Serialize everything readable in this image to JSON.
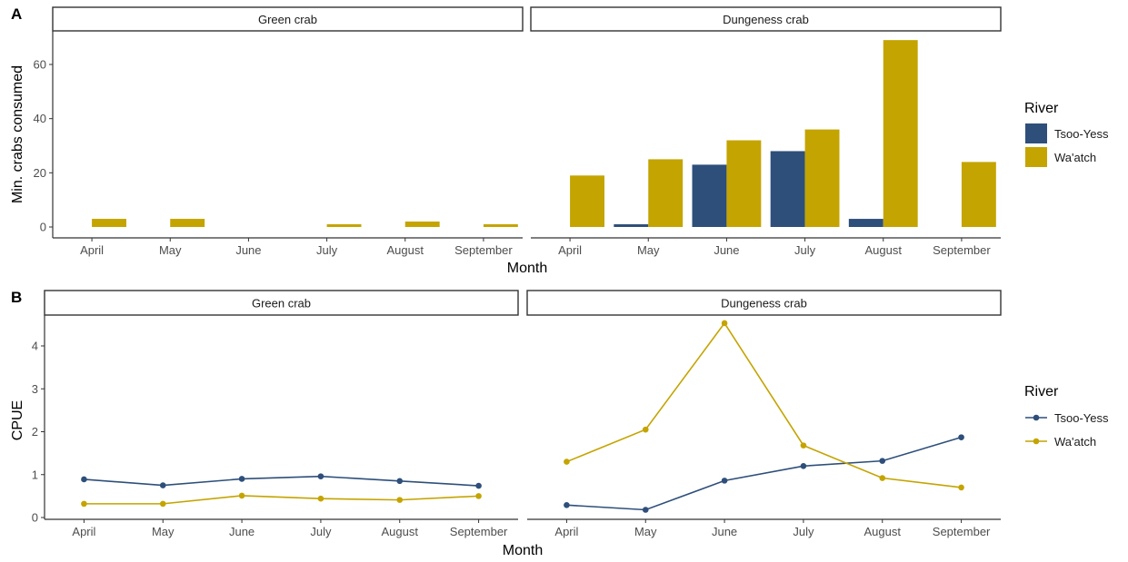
{
  "chart_data": [
    {
      "type": "bar",
      "panel_tag": "A",
      "xlabel": "Month",
      "ylabel": "Min. crabs consumed",
      "ylim": [
        0,
        70
      ],
      "yticks": [
        0,
        20,
        40,
        60
      ],
      "categories": [
        "April",
        "May",
        "June",
        "July",
        "August",
        "September"
      ],
      "legend": {
        "title": "River",
        "position": "right"
      },
      "grid": false,
      "facets": [
        {
          "strip": "Green crab",
          "series": [
            {
              "name": "Tsoo-Yess",
              "values": [
                0,
                0,
                0,
                0,
                0,
                0
              ]
            },
            {
              "name": "Wa'atch",
              "values": [
                3,
                3,
                0,
                1,
                2,
                1
              ]
            }
          ]
        },
        {
          "strip": "Dungeness crab",
          "series": [
            {
              "name": "Tsoo-Yess",
              "values": [
                0,
                1,
                23,
                28,
                3,
                0
              ]
            },
            {
              "name": "Wa'atch",
              "values": [
                19,
                25,
                32,
                36,
                69,
                24
              ]
            }
          ]
        }
      ]
    },
    {
      "type": "line",
      "panel_tag": "B",
      "xlabel": "Month",
      "ylabel": "CPUE",
      "ylim": [
        0,
        4.7
      ],
      "yticks": [
        0,
        1,
        2,
        3,
        4
      ],
      "categories": [
        "April",
        "May",
        "June",
        "July",
        "August",
        "September"
      ],
      "legend": {
        "title": "River",
        "position": "right"
      },
      "grid": false,
      "facets": [
        {
          "strip": "Green crab",
          "series": [
            {
              "name": "Tsoo-Yess",
              "values": [
                0.89,
                0.75,
                0.9,
                0.96,
                0.85,
                0.74
              ]
            },
            {
              "name": "Wa'atch",
              "values": [
                0.32,
                0.32,
                0.51,
                0.44,
                0.41,
                0.5
              ]
            }
          ]
        },
        {
          "strip": "Dungeness crab",
          "series": [
            {
              "name": "Tsoo-Yess",
              "values": [
                0.29,
                0.18,
                0.86,
                1.2,
                1.32,
                1.87
              ]
            },
            {
              "name": "Wa'atch",
              "values": [
                1.3,
                2.05,
                4.53,
                1.68,
                0.92,
                0.7
              ]
            }
          ]
        }
      ]
    }
  ],
  "colors": {
    "Tsoo-Yess": "#2e4f7a",
    "Wa'atch": "#c4a400",
    "axis": "#333333",
    "strip_border": "#333333"
  }
}
